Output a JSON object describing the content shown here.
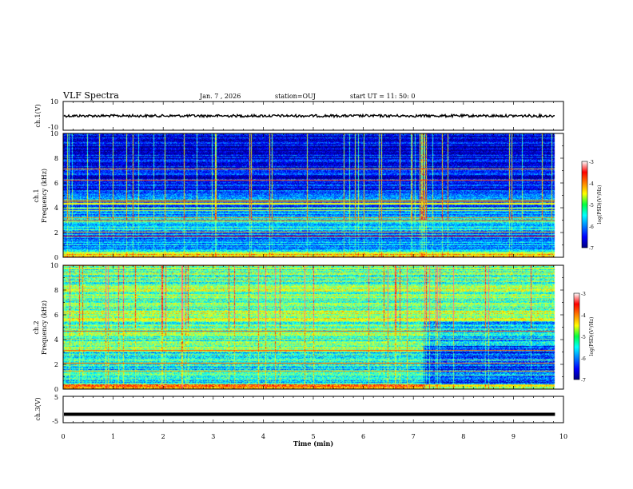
{
  "header": {
    "title": "VLF Spectra",
    "date": "Jan. 7 , 2026",
    "station": "station=OUJ",
    "start": "start UT =  11: 50: 0"
  },
  "chart_data": [
    {
      "type": "line",
      "name": "ch1-waveform",
      "ylabel": "ch.1(V)",
      "ylim": [
        -10,
        10
      ],
      "yticks": [
        "10",
        "-10"
      ],
      "level": 0
    },
    {
      "type": "heatmap",
      "name": "ch1-spectrogram",
      "ylabel_line1": "ch.1",
      "ylabel_line2": "Frequency (kHz)",
      "ylim": [
        0,
        10
      ],
      "yticks": [
        "0",
        "2",
        "4",
        "6",
        "8",
        "10"
      ],
      "colorbar": {
        "label": "log(PSD)(V²/Hz)",
        "range": [
          -7,
          -3
        ],
        "ticks": [
          "-3",
          "-4",
          "-5",
          "-6",
          "-7"
        ]
      }
    },
    {
      "type": "heatmap",
      "name": "ch2-spectrogram",
      "ylabel_line1": "ch.2",
      "ylabel_line2": "Frequency (kHz)",
      "ylim": [
        0,
        10
      ],
      "yticks": [
        "0",
        "2",
        "4",
        "6",
        "8",
        "10"
      ],
      "colorbar": {
        "label": "log(PSD)(V²/Hz)",
        "range": [
          -7,
          -3
        ],
        "ticks": [
          "-3",
          "-4",
          "-5",
          "-6",
          "-7"
        ]
      }
    },
    {
      "type": "line",
      "name": "ch3-waveform",
      "ylabel": "ch.3(V)",
      "ylim": [
        -5,
        5
      ],
      "yticks": [
        "5",
        "-5"
      ],
      "level": -1.8
    }
  ],
  "xaxis": {
    "label": "Time (min)",
    "range": [
      0,
      10
    ],
    "data_end": 9.83,
    "ticks": [
      "0",
      "1",
      "2",
      "3",
      "4",
      "5",
      "6",
      "7",
      "8",
      "9",
      "10"
    ]
  }
}
